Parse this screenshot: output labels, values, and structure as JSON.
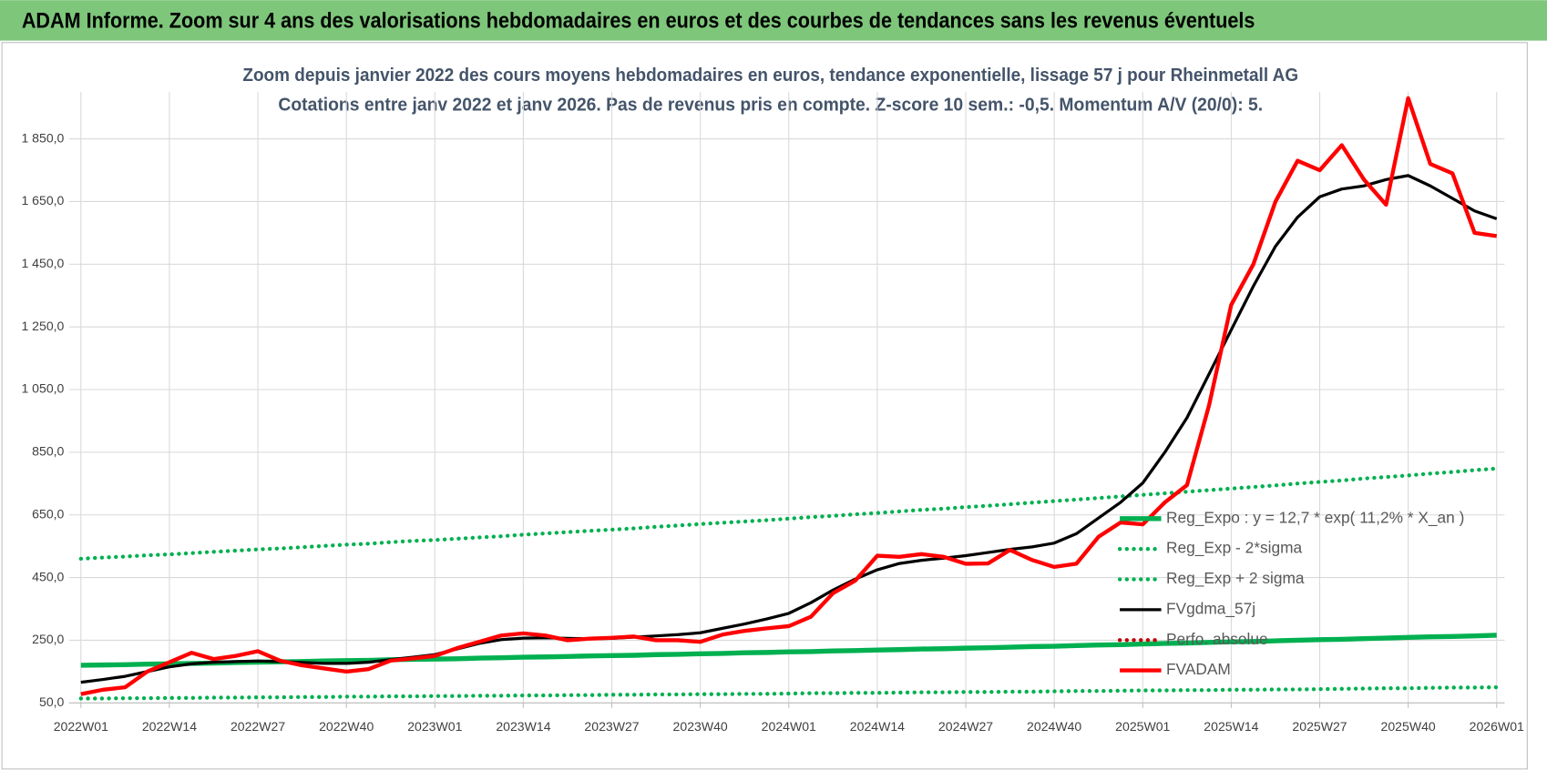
{
  "page_title": "ADAM Informe. Zoom sur 4 ans des valorisations hebdomadaires en euros et des courbes de tendances sans les revenus éventuels",
  "chart_data": {
    "type": "line",
    "title": "Zoom depuis janvier 2022 des cours moyens hebdomadaires en euros, tendance exponentielle, lissage 57 j pour Rheinmetall AG",
    "subtitle": "Cotations entre janv 2022 et janv 2026. Pas de revenus pris en compte. Z-score 10 sem.: -0,5. Momentum A/V (20/0): 5.",
    "categories": [
      "2022W01",
      null,
      null,
      null,
      "2022W14",
      null,
      null,
      null,
      "2022W27",
      null,
      null,
      null,
      "2022W40",
      null,
      null,
      null,
      "2023W01",
      null,
      null,
      null,
      "2023W14",
      null,
      null,
      null,
      "2023W27",
      null,
      null,
      null,
      "2023W40",
      null,
      null,
      null,
      "2024W01",
      null,
      null,
      null,
      "2024W14",
      null,
      null,
      null,
      "2024W27",
      null,
      null,
      null,
      "2024W40",
      null,
      null,
      null,
      "2025W01",
      null,
      null,
      null,
      "2025W14",
      null,
      null,
      null,
      "2025W27",
      null,
      null,
      null,
      "2025W40",
      null,
      null,
      null,
      "2026W01"
    ],
    "ylim": [
      50,
      2000
    ],
    "yticks": [
      {
        "value": 50,
        "label": "50,0"
      },
      {
        "value": 250,
        "label": "250,0"
      },
      {
        "value": 450,
        "label": "450,0"
      },
      {
        "value": 650,
        "label": "650,0"
      },
      {
        "value": 850,
        "label": "850,0"
      },
      {
        "value": 1050,
        "label": "1 050,0"
      },
      {
        "value": 1250,
        "label": "1 250,0"
      },
      {
        "value": 1450,
        "label": "1 450,0"
      },
      {
        "value": 1650,
        "label": "1 650,0"
      },
      {
        "value": 1850,
        "label": "1 850,0"
      }
    ],
    "grid": true,
    "legend": "lower right",
    "series": [
      {
        "name": "Reg_Expo : y = 12,7 * exp( 11,2% *  X_an )",
        "color": "#00b050",
        "style": "solid",
        "width": 5,
        "values": [
          170,
          171,
          172,
          174,
          175,
          176,
          177,
          179,
          180,
          181,
          182,
          184,
          185,
          186,
          188,
          189,
          190,
          191,
          193,
          194,
          196,
          197,
          198,
          200,
          201,
          202,
          204,
          205,
          207,
          208,
          210,
          211,
          213,
          214,
          216,
          217,
          219,
          220,
          222,
          223,
          225,
          226,
          228,
          230,
          231,
          233,
          235,
          236,
          238,
          240,
          241,
          243,
          245,
          246,
          248,
          250,
          252,
          253,
          255,
          257,
          259,
          261,
          262,
          264,
          266
        ]
      },
      {
        "name": "Reg_Exp - 2*sigma",
        "color": "#00b050",
        "style": "dotted",
        "width": 4,
        "values": [
          64,
          64,
          65,
          65,
          66,
          66,
          67,
          67,
          68,
          68,
          69,
          69,
          70,
          70,
          71,
          71,
          72,
          72,
          73,
          73,
          74,
          74,
          75,
          75,
          76,
          76,
          77,
          77,
          78,
          78,
          79,
          79,
          80,
          81,
          81,
          82,
          82,
          83,
          84,
          84,
          85,
          85,
          86,
          86,
          87,
          88,
          88,
          89,
          90,
          90,
          91,
          91,
          92,
          92,
          93,
          93,
          94,
          95,
          96,
          97,
          97,
          98,
          99,
          99,
          100
        ]
      },
      {
        "name": "Reg_Exp + 2 sigma",
        "color": "#00b050",
        "style": "dotted",
        "width": 4,
        "values": [
          510,
          514,
          517,
          521,
          524,
          528,
          532,
          536,
          540,
          543,
          547,
          551,
          555,
          558,
          563,
          567,
          570,
          574,
          578,
          582,
          587,
          591,
          595,
          599,
          603,
          607,
          612,
          616,
          621,
          625,
          629,
          633,
          638,
          643,
          647,
          652,
          656,
          661,
          666,
          670,
          675,
          679,
          684,
          689,
          694,
          699,
          704,
          709,
          714,
          719,
          724,
          729,
          734,
          739,
          744,
          750,
          755,
          760,
          766,
          771,
          776,
          782,
          787,
          793,
          798
        ]
      },
      {
        "name": "FVgdma_57j",
        "color": "#000000",
        "style": "solid",
        "width": 3,
        "values": [
          116,
          125,
          135,
          150,
          165,
          175,
          180,
          182,
          184,
          182,
          179,
          176,
          176,
          180,
          188,
          196,
          204,
          222,
          240,
          252,
          257,
          258,
          256,
          255,
          256,
          260,
          264,
          268,
          274,
          288,
          302,
          318,
          336,
          370,
          410,
          445,
          475,
          495,
          505,
          512,
          520,
          530,
          540,
          548,
          560,
          590,
          640,
          690,
          752,
          850,
          960,
          1100,
          1240,
          1380,
          1507,
          1600,
          1665,
          1690,
          1700,
          1720,
          1733,
          1700,
          1660,
          1620,
          1595
        ]
      },
      {
        "name": "Perfo. absolue",
        "color": "#c00000",
        "style": "dotted",
        "width": 4,
        "values": [
          null,
          null,
          null,
          null,
          null,
          null,
          null,
          null,
          null,
          null,
          null,
          null,
          null,
          null,
          null,
          null,
          null,
          null,
          null,
          null,
          null,
          null,
          null,
          null,
          null,
          null,
          null,
          null,
          null,
          null,
          null,
          null,
          null,
          null,
          null,
          null,
          null,
          null,
          null,
          null,
          null,
          null,
          null,
          null,
          null,
          null,
          null,
          null,
          null,
          null,
          null,
          null,
          null,
          null,
          null,
          null,
          null,
          null,
          null,
          null,
          null,
          null,
          null,
          null,
          null
        ]
      },
      {
        "name": "FVADAM",
        "color": "#ff0000",
        "style": "solid",
        "width": 4,
        "values": [
          78,
          92,
          100,
          150,
          180,
          210,
          190,
          200,
          215,
          185,
          170,
          160,
          150,
          158,
          185,
          192,
          200,
          225,
          245,
          265,
          272,
          265,
          250,
          255,
          258,
          262,
          250,
          250,
          245,
          268,
          280,
          288,
          295,
          325,
          400,
          440,
          520,
          516,
          525,
          516,
          494,
          495,
          538,
          506,
          484,
          494,
          580,
          626,
          620,
          690,
          745,
          1000,
          1320,
          1450,
          1650,
          1780,
          1750,
          1830,
          1720,
          1640,
          1980,
          1770,
          1740,
          1550,
          1540
        ]
      }
    ]
  }
}
